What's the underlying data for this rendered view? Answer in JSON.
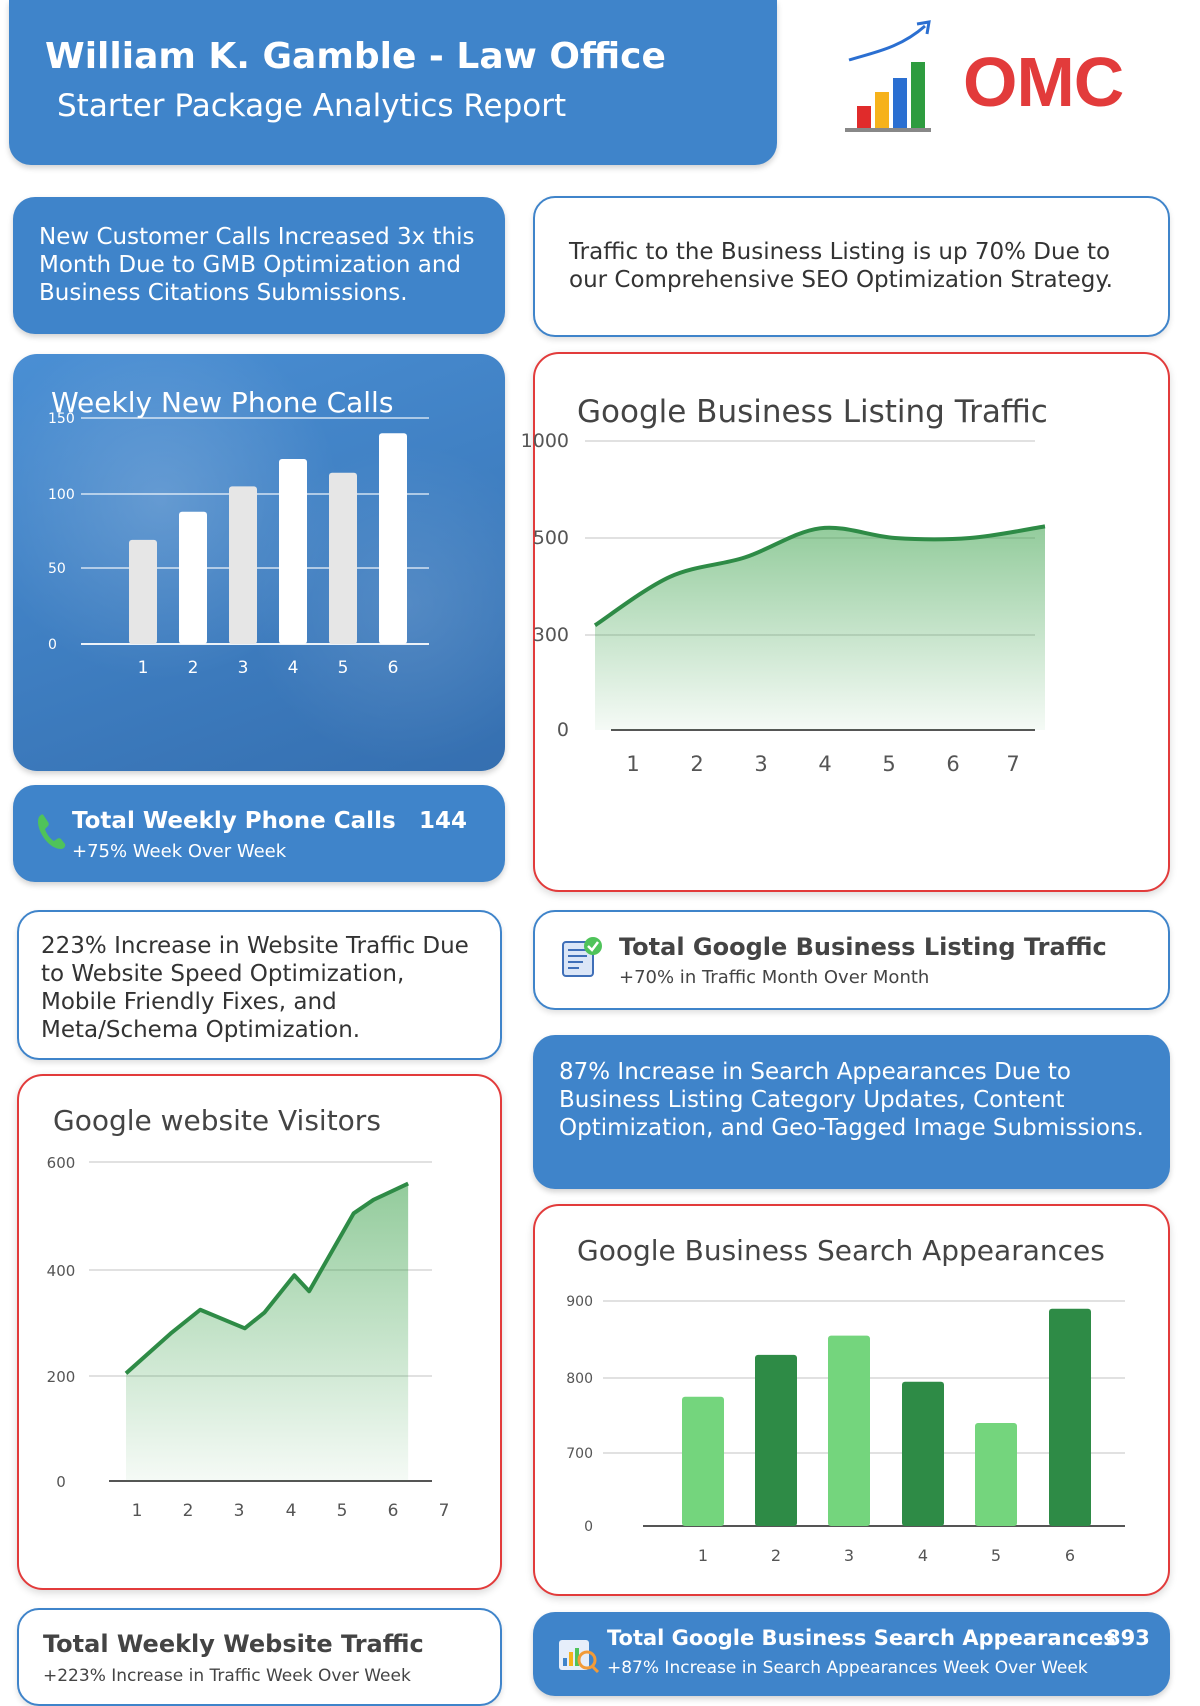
{
  "header": {
    "title": "William K. Gamble - Law Office",
    "subtitle": "Starter Package Analytics Report"
  },
  "logo": {
    "text": "OMC"
  },
  "calls_note": "New Customer Calls Increased 3x this Month Due to GMB Optimization and Business Citations Submissions.",
  "listing_note": "Traffic to the Business Listing is up 70% Due to our Comprehensive SEO Optimization Strategy.",
  "calls_chart": {
    "title": "Weekly New Phone Calls",
    "yticks": [
      "150",
      "100",
      "50",
      "0"
    ],
    "categories": [
      "1",
      "2",
      "3",
      "4",
      "5",
      "6"
    ]
  },
  "calls_summary": {
    "label": "Total Weekly Phone Calls",
    "value": "144",
    "sub": "+75% Week Over Week"
  },
  "listing_chart": {
    "title": "Google Business Listing Traffic",
    "yticks": [
      "1000",
      "500",
      "300",
      "0"
    ],
    "categories": [
      "1",
      "2",
      "3",
      "4",
      "5",
      "6",
      "7"
    ]
  },
  "listing_summary": {
    "label": "Total Google Business Listing Traffic",
    "sub": "+70% in Traffic Month Over Month"
  },
  "website_note": "223% Increase in Website Traffic Due to Website Speed Optimization, Mobile Friendly Fixes, and Meta/Schema Optimization.",
  "search_note": "87% Increase in Search Appearances Due to Business Listing Category Updates, Content Optimization, and Geo-Tagged Image Submissions.",
  "visitors_chart": {
    "title": "Google website Visitors",
    "yticks": [
      "600",
      "400",
      "200",
      "0"
    ],
    "categories": [
      "1",
      "2",
      "3",
      "4",
      "5",
      "6",
      "7"
    ]
  },
  "search_chart": {
    "title": "Google Business Search Appearances",
    "yticks": [
      "900",
      "800",
      "700",
      "0"
    ],
    "categories": [
      "1",
      "2",
      "3",
      "4",
      "5",
      "6"
    ]
  },
  "website_summary": {
    "label": "Total Weekly Website Traffic",
    "sub": "+223% Increase in Traffic Week Over Week"
  },
  "search_summary": {
    "label": "Total Google Business Search Appearances",
    "value": "893",
    "sub": "+87% Increase in Search Appearances Week Over Week"
  },
  "colors": {
    "brand_blue": "#3f84ca",
    "accent_red": "#e23b3b",
    "green_dark": "#2e8b46",
    "green_light": "#74d57d"
  },
  "chart_data": [
    {
      "type": "bar",
      "title": "Weekly New Phone Calls",
      "categories": [
        "1",
        "2",
        "3",
        "4",
        "5",
        "6"
      ],
      "values": [
        69,
        88,
        105,
        123,
        114,
        140
      ],
      "ylim": [
        0,
        150
      ]
    },
    {
      "type": "area",
      "title": "Google Business Listing Traffic",
      "x": [
        1,
        2,
        3,
        4,
        5,
        6,
        7
      ],
      "values": [
        320,
        420,
        460,
        550,
        500,
        500,
        560
      ],
      "yticks": [
        0,
        300,
        500,
        1000
      ]
    },
    {
      "type": "area",
      "title": "Google website Visitors",
      "x": [
        1,
        1.9,
        2.5,
        3.4,
        3.8,
        4.4,
        4.7,
        5.6,
        6.0,
        6.7
      ],
      "values": [
        205,
        280,
        325,
        290,
        320,
        390,
        360,
        505,
        530,
        560
      ],
      "ylim": [
        0,
        600
      ]
    },
    {
      "type": "bar",
      "title": "Google Business Search Appearances",
      "categories": [
        "1",
        "2",
        "3",
        "4",
        "5",
        "6"
      ],
      "values": [
        775,
        830,
        855,
        795,
        740,
        890
      ],
      "yticks": [
        0,
        700,
        800,
        900
      ]
    }
  ]
}
